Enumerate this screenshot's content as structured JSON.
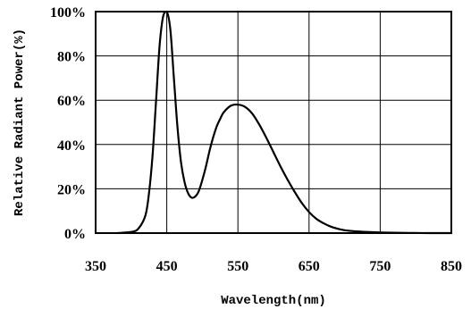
{
  "chart_data": {
    "type": "line",
    "title": "",
    "xlabel": "Wavelength(nm)",
    "ylabel": "Relative Radiant Power(%)",
    "xlim": [
      350,
      850
    ],
    "ylim": [
      0,
      100
    ],
    "x_ticks": [
      "350",
      "450",
      "550",
      "650",
      "750",
      "850"
    ],
    "y_ticks": [
      "0%",
      "20%",
      "40%",
      "60%",
      "80%",
      "100%"
    ],
    "grid": true,
    "legend": "none",
    "line_color": "#000000",
    "series": [
      {
        "x": [
          380,
          400,
          410,
          420,
          425,
          430,
          435,
          440,
          445,
          450,
          455,
          460,
          465,
          470,
          475,
          480,
          485,
          490,
          495,
          500,
          505,
          510,
          515,
          520,
          525,
          530,
          540,
          550,
          560,
          570,
          580,
          590,
          600,
          610,
          620,
          630,
          640,
          650,
          660,
          670,
          680,
          690,
          700,
          720,
          740,
          760,
          780,
          800,
          820,
          850
        ],
        "y": [
          0,
          0.5,
          2,
          8,
          18,
          35,
          60,
          85,
          98,
          100,
          92,
          70,
          48,
          32,
          23,
          18,
          16,
          16.5,
          19,
          24,
          30,
          37,
          43,
          48,
          51.5,
          54.5,
          57.5,
          58,
          57,
          54,
          49,
          43,
          36.5,
          30,
          24,
          18.5,
          13.5,
          9.5,
          6.5,
          4.5,
          3,
          2,
          1.3,
          0.7,
          0.4,
          0.2,
          0.1,
          0.05,
          0,
          0
        ]
      }
    ]
  }
}
